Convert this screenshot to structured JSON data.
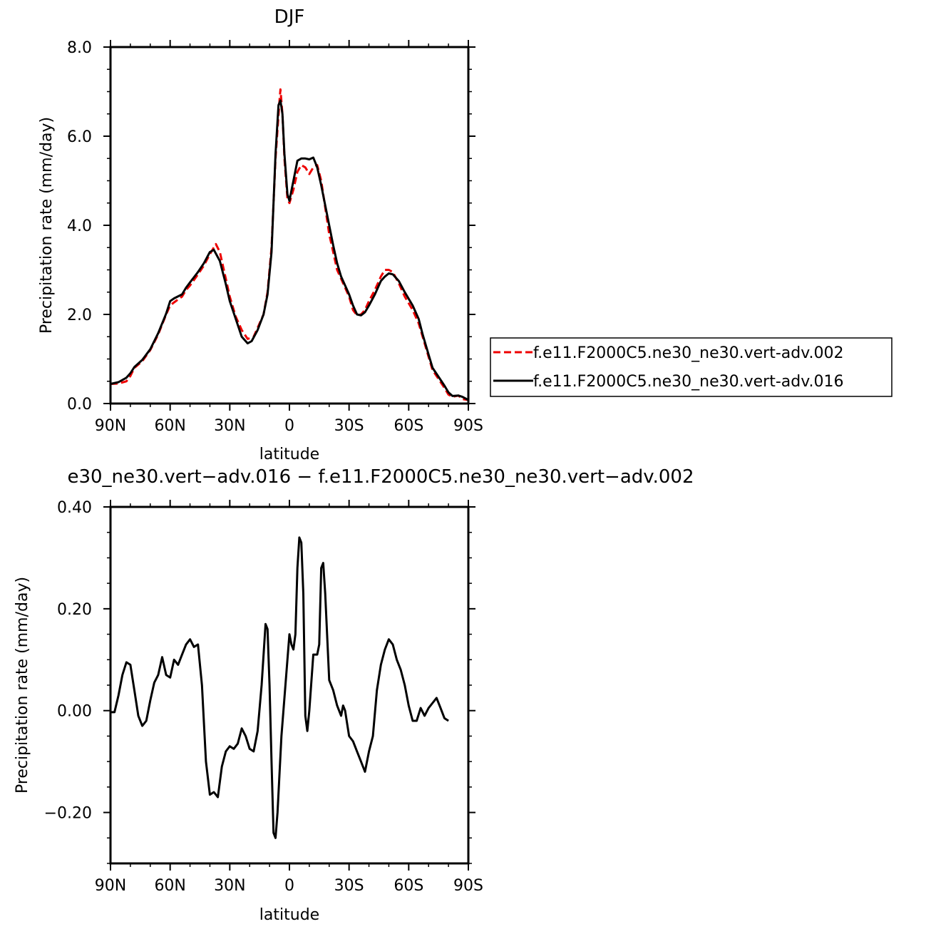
{
  "chart_data": [
    {
      "type": "line",
      "title": "DJF",
      "xlabel": "latitude",
      "ylabel": "Precipitation rate (mm/day)",
      "xlim": [
        -90,
        90
      ],
      "ylim": [
        0,
        8
      ],
      "xticks": [
        {
          "value": -90,
          "label": "90N"
        },
        {
          "value": -60,
          "label": "60N"
        },
        {
          "value": -30,
          "label": "30N"
        },
        {
          "value": 0,
          "label": "0"
        },
        {
          "value": 30,
          "label": "30S"
        },
        {
          "value": 60,
          "label": "60S"
        },
        {
          "value": 90,
          "label": "90S"
        }
      ],
      "yticks": [
        {
          "value": 0,
          "label": "0.0"
        },
        {
          "value": 2,
          "label": "2.0"
        },
        {
          "value": 4,
          "label": "4.0"
        },
        {
          "value": 6,
          "label": "6.0"
        },
        {
          "value": 8,
          "label": "8.0"
        }
      ],
      "legend_position": "right",
      "series": [
        {
          "name": "f.e11.F2000C5.ne30_ne30.vert-adv.002",
          "color": "#ee0000",
          "dash": true,
          "points": [
            [
              -90,
              0.44
            ],
            [
              -86,
              0.45
            ],
            [
              -82,
              0.5
            ],
            [
              -80,
              0.62
            ],
            [
              -78,
              0.8
            ],
            [
              -74,
              0.95
            ],
            [
              -70,
              1.2
            ],
            [
              -66,
              1.55
            ],
            [
              -62,
              2.0
            ],
            [
              -60,
              2.2
            ],
            [
              -58,
              2.27
            ],
            [
              -54,
              2.4
            ],
            [
              -52,
              2.55
            ],
            [
              -50,
              2.65
            ],
            [
              -46,
              2.9
            ],
            [
              -43,
              3.1
            ],
            [
              -40,
              3.35
            ],
            [
              -37,
              3.58
            ],
            [
              -35,
              3.4
            ],
            [
              -32,
              2.8
            ],
            [
              -30,
              2.4
            ],
            [
              -27,
              1.95
            ],
            [
              -24,
              1.65
            ],
            [
              -21,
              1.45
            ],
            [
              -18,
              1.5
            ],
            [
              -16,
              1.7
            ],
            [
              -13,
              2.0
            ],
            [
              -11,
              2.5
            ],
            [
              -9,
              3.5
            ],
            [
              -7,
              5.5
            ],
            [
              -5,
              6.8
            ],
            [
              -4.5,
              7.05
            ],
            [
              -3.5,
              6.5
            ],
            [
              -2.5,
              5.5
            ],
            [
              -1,
              4.6
            ],
            [
              0,
              4.5
            ],
            [
              2,
              4.8
            ],
            [
              4,
              5.2
            ],
            [
              6,
              5.35
            ],
            [
              8,
              5.3
            ],
            [
              10,
              5.15
            ],
            [
              12,
              5.3
            ],
            [
              14,
              5.35
            ],
            [
              16,
              5.0
            ],
            [
              18,
              4.4
            ],
            [
              20,
              3.8
            ],
            [
              22,
              3.4
            ],
            [
              24,
              3.0
            ],
            [
              26,
              2.8
            ],
            [
              28,
              2.6
            ],
            [
              30,
              2.4
            ],
            [
              32,
              2.1
            ],
            [
              34,
              1.98
            ],
            [
              36,
              2.0
            ],
            [
              38,
              2.1
            ],
            [
              40,
              2.3
            ],
            [
              43,
              2.55
            ],
            [
              46,
              2.85
            ],
            [
              48,
              3.0
            ],
            [
              50,
              3.0
            ],
            [
              52,
              2.95
            ],
            [
              55,
              2.7
            ],
            [
              58,
              2.4
            ],
            [
              62,
              2.1
            ],
            [
              65,
              1.8
            ],
            [
              67,
              1.5
            ],
            [
              70,
              1.05
            ],
            [
              72,
              0.75
            ],
            [
              75,
              0.55
            ],
            [
              78,
              0.35
            ],
            [
              80,
              0.2
            ],
            [
              82,
              0.15
            ],
            [
              85,
              0.18
            ],
            [
              87,
              0.1
            ],
            [
              90,
              0.08
            ]
          ]
        },
        {
          "name": "f.e11.F2000C5.ne30_ne30.vert-adv.016",
          "color": "#000000",
          "dash": false,
          "points": [
            [
              -90,
              0.44
            ],
            [
              -86,
              0.48
            ],
            [
              -82,
              0.58
            ],
            [
              -80,
              0.68
            ],
            [
              -78,
              0.82
            ],
            [
              -74,
              0.98
            ],
            [
              -70,
              1.22
            ],
            [
              -66,
              1.58
            ],
            [
              -62,
              2.02
            ],
            [
              -60,
              2.3
            ],
            [
              -58,
              2.36
            ],
            [
              -54,
              2.45
            ],
            [
              -52,
              2.6
            ],
            [
              -50,
              2.72
            ],
            [
              -46,
              2.95
            ],
            [
              -43,
              3.15
            ],
            [
              -40,
              3.4
            ],
            [
              -38,
              3.45
            ],
            [
              -35,
              3.2
            ],
            [
              -32,
              2.68
            ],
            [
              -30,
              2.3
            ],
            [
              -27,
              1.9
            ],
            [
              -24,
              1.5
            ],
            [
              -21,
              1.35
            ],
            [
              -19,
              1.4
            ],
            [
              -16,
              1.65
            ],
            [
              -13,
              2.0
            ],
            [
              -11,
              2.45
            ],
            [
              -9,
              3.4
            ],
            [
              -7,
              5.6
            ],
            [
              -5.5,
              6.7
            ],
            [
              -4.5,
              6.8
            ],
            [
              -3.5,
              6.5
            ],
            [
              -2.5,
              5.6
            ],
            [
              -1,
              4.7
            ],
            [
              0,
              4.55
            ],
            [
              2,
              5.0
            ],
            [
              4,
              5.45
            ],
            [
              6,
              5.5
            ],
            [
              8,
              5.5
            ],
            [
              10,
              5.48
            ],
            [
              12,
              5.52
            ],
            [
              14,
              5.3
            ],
            [
              16,
              4.9
            ],
            [
              18,
              4.45
            ],
            [
              20,
              4.0
            ],
            [
              22,
              3.55
            ],
            [
              24,
              3.15
            ],
            [
              26,
              2.85
            ],
            [
              28,
              2.65
            ],
            [
              30,
              2.45
            ],
            [
              32,
              2.2
            ],
            [
              34,
              2.0
            ],
            [
              36,
              1.98
            ],
            [
              38,
              2.05
            ],
            [
              40,
              2.2
            ],
            [
              43,
              2.45
            ],
            [
              46,
              2.75
            ],
            [
              48,
              2.85
            ],
            [
              50,
              2.92
            ],
            [
              52,
              2.9
            ],
            [
              55,
              2.75
            ],
            [
              58,
              2.5
            ],
            [
              62,
              2.2
            ],
            [
              65,
              1.9
            ],
            [
              67,
              1.55
            ],
            [
              70,
              1.1
            ],
            [
              72,
              0.8
            ],
            [
              75,
              0.6
            ],
            [
              78,
              0.4
            ],
            [
              80,
              0.25
            ],
            [
              82,
              0.17
            ],
            [
              85,
              0.18
            ],
            [
              87,
              0.15
            ],
            [
              90,
              0.08
            ]
          ]
        }
      ]
    },
    {
      "type": "line",
      "title": "e30_ne30.vert−adv.016 − f.e11.F2000C5.ne30_ne30.vert−adv.002",
      "xlabel": "latitude",
      "ylabel": "Precipitation rate (mm/day)",
      "xlim": [
        -90,
        90
      ],
      "ylim": [
        -0.3,
        0.4
      ],
      "xticks": [
        {
          "value": -90,
          "label": "90N"
        },
        {
          "value": -60,
          "label": "60N"
        },
        {
          "value": -30,
          "label": "30N"
        },
        {
          "value": 0,
          "label": "0"
        },
        {
          "value": 30,
          "label": "30S"
        },
        {
          "value": 60,
          "label": "60S"
        },
        {
          "value": 90,
          "label": "90S"
        }
      ],
      "yticks": [
        {
          "value": -0.2,
          "label": "−0.20"
        },
        {
          "value": 0,
          "label": "0.00"
        },
        {
          "value": 0.2,
          "label": "0.20"
        },
        {
          "value": 0.4,
          "label": "0.40"
        }
      ],
      "series": [
        {
          "color": "#000000",
          "dash": false,
          "points": [
            [
              -90,
              -0.003
            ],
            [
              -88,
              -0.003
            ],
            [
              -86,
              0.03
            ],
            [
              -84,
              0.07
            ],
            [
              -82,
              0.095
            ],
            [
              -80,
              0.09
            ],
            [
              -78,
              0.04
            ],
            [
              -76,
              -0.01
            ],
            [
              -74,
              -0.03
            ],
            [
              -72,
              -0.02
            ],
            [
              -70,
              0.02
            ],
            [
              -68,
              0.055
            ],
            [
              -66,
              0.07
            ],
            [
              -64,
              0.105
            ],
            [
              -62,
              0.07
            ],
            [
              -60,
              0.065
            ],
            [
              -58,
              0.1
            ],
            [
              -56,
              0.09
            ],
            [
              -54,
              0.11
            ],
            [
              -52,
              0.13
            ],
            [
              -50,
              0.14
            ],
            [
              -48,
              0.125
            ],
            [
              -46,
              0.13
            ],
            [
              -44,
              0.05
            ],
            [
              -42,
              -0.1
            ],
            [
              -40,
              -0.165
            ],
            [
              -38,
              -0.16
            ],
            [
              -36,
              -0.17
            ],
            [
              -34,
              -0.11
            ],
            [
              -32,
              -0.08
            ],
            [
              -30,
              -0.07
            ],
            [
              -28,
              -0.075
            ],
            [
              -26,
              -0.065
            ],
            [
              -24,
              -0.035
            ],
            [
              -22,
              -0.05
            ],
            [
              -20,
              -0.075
            ],
            [
              -18,
              -0.08
            ],
            [
              -16,
              -0.04
            ],
            [
              -14,
              0.05
            ],
            [
              -12,
              0.17
            ],
            [
              -11,
              0.16
            ],
            [
              -10,
              0.05
            ],
            [
              -9,
              -0.1
            ],
            [
              -8,
              -0.24
            ],
            [
              -7,
              -0.25
            ],
            [
              -6,
              -0.2
            ],
            [
              -4,
              -0.05
            ],
            [
              -2,
              0.05
            ],
            [
              0,
              0.15
            ],
            [
              1,
              0.13
            ],
            [
              2,
              0.12
            ],
            [
              3,
              0.15
            ],
            [
              4,
              0.28
            ],
            [
              5,
              0.34
            ],
            [
              6,
              0.33
            ],
            [
              7,
              0.23
            ],
            [
              8,
              -0.01
            ],
            [
              9,
              -0.04
            ],
            [
              10,
              0.0
            ],
            [
              12,
              0.11
            ],
            [
              14,
              0.11
            ],
            [
              15,
              0.13
            ],
            [
              16,
              0.28
            ],
            [
              17,
              0.29
            ],
            [
              18,
              0.23
            ],
            [
              20,
              0.06
            ],
            [
              22,
              0.04
            ],
            [
              24,
              0.01
            ],
            [
              26,
              -0.01
            ],
            [
              27,
              0.01
            ],
            [
              28,
              0.0
            ],
            [
              30,
              -0.05
            ],
            [
              32,
              -0.06
            ],
            [
              34,
              -0.08
            ],
            [
              36,
              -0.1
            ],
            [
              38,
              -0.12
            ],
            [
              40,
              -0.08
            ],
            [
              42,
              -0.05
            ],
            [
              44,
              0.04
            ],
            [
              46,
              0.09
            ],
            [
              48,
              0.12
            ],
            [
              50,
              0.14
            ],
            [
              52,
              0.13
            ],
            [
              54,
              0.1
            ],
            [
              56,
              0.08
            ],
            [
              58,
              0.05
            ],
            [
              60,
              0.01
            ],
            [
              62,
              -0.02
            ],
            [
              64,
              -0.02
            ],
            [
              66,
              0.005
            ],
            [
              68,
              -0.01
            ],
            [
              70,
              0.005
            ],
            [
              72,
              0.015
            ],
            [
              74,
              0.025
            ],
            [
              76,
              0.005
            ],
            [
              78,
              -0.015
            ],
            [
              80,
              -0.02
            ]
          ]
        }
      ]
    }
  ]
}
